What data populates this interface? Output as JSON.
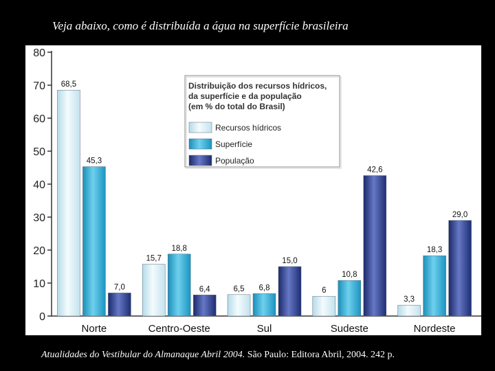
{
  "slide": {
    "title": "Veja abaixo, como é distribuída a água na superfície brasileira",
    "citation_italic": "Atualidades do Vestibular do Almanaque Abril 2004.",
    "citation_rest": " São Paulo: Editora Abril, 2004. 242 p."
  },
  "chart_data": {
    "type": "bar",
    "title": "Distribuição dos recursos hídricos, da superfície e da população (em % do total do Brasil)",
    "categories": [
      "Norte",
      "Centro-Oeste",
      "Sul",
      "Sudeste",
      "Nordeste"
    ],
    "series": [
      {
        "name": "Recursos hídricos",
        "values": [
          68.5,
          15.7,
          6.5,
          6,
          3.3
        ],
        "labels": [
          "68,5",
          "15,7",
          "6,5",
          "6",
          "3,3"
        ]
      },
      {
        "name": "Superfície",
        "values": [
          45.3,
          18.8,
          6.8,
          10.8,
          18.3
        ],
        "labels": [
          "45,3",
          "18,8",
          "6,8",
          "10,8",
          "18,3"
        ]
      },
      {
        "name": "População",
        "values": [
          7.0,
          6.4,
          15.0,
          42.6,
          29.0
        ],
        "labels": [
          "7,0",
          "6,4",
          "15,0",
          "42,6",
          "29,0"
        ]
      }
    ],
    "ylim": [
      0,
      80
    ],
    "yticks": [
      "0",
      "10",
      "20",
      "30",
      "40",
      "50",
      "60",
      "70",
      "80"
    ],
    "legend": {
      "title_lines": [
        "Distribuição dos recursos hídricos,",
        "da superfície e da população",
        "(em % do total do Brasil)"
      ],
      "position": "top-center"
    },
    "colors": {
      "Recursos hídricos": "#dff1f7",
      "Superfície": "#2fb2d8",
      "População": "#2b3f8e"
    }
  }
}
